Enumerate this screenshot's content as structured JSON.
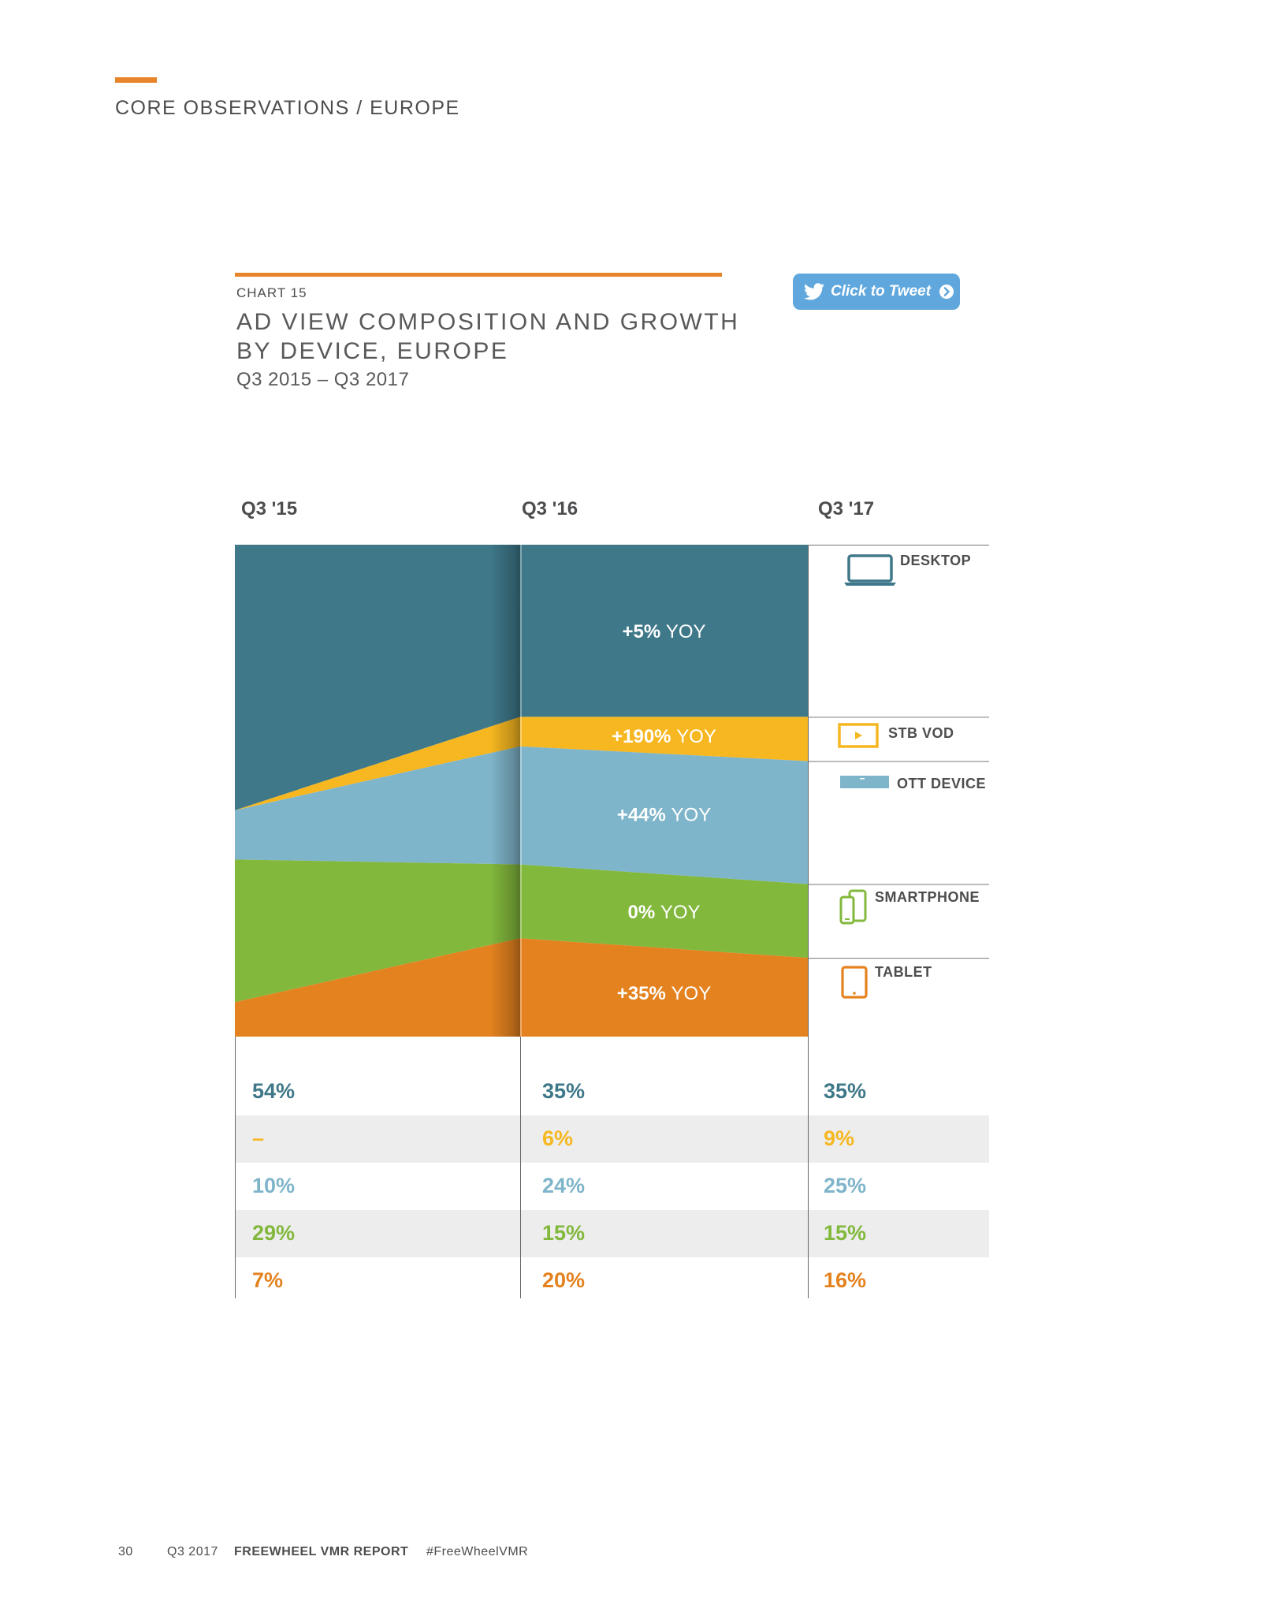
{
  "header": {
    "section_title": "CORE OBSERVATIONS / EUROPE"
  },
  "chart_header": {
    "chart_number": "CHART 15",
    "title_line1": "AD VIEW COMPOSITION AND GROWTH",
    "title_line2": "BY DEVICE, EUROPE",
    "subtitle": "Q3 2015 – Q3 2017"
  },
  "tweet_button": {
    "label": "Click to Tweet"
  },
  "colors": {
    "accent": "#e8852a",
    "desktop": "#3e7889",
    "stb_vod": "#f6b720",
    "ott_device": "#7fb5ca",
    "smartphone": "#82b83c",
    "tablet": "#e4821f",
    "row_shade": "#ededed"
  },
  "chart_data": {
    "type": "area",
    "stacked": true,
    "normalized_percent": true,
    "categories": [
      "Q3 '15",
      "Q3 '16",
      "Q3 '17"
    ],
    "series": [
      {
        "name": "DESKTOP",
        "key": "desktop",
        "values": [
          54,
          35,
          35
        ],
        "labels": [
          "54%",
          "35%",
          "35%"
        ],
        "yoy": "+5% YOY",
        "icon": "laptop-icon"
      },
      {
        "name": "STB VOD",
        "key": "stb_vod",
        "values": [
          0,
          6,
          9
        ],
        "labels": [
          "–",
          "6%",
          "9%"
        ],
        "yoy": "+190% YOY",
        "icon": "tv-play-icon"
      },
      {
        "name": "OTT DEVICE",
        "key": "ott_device",
        "values": [
          10,
          24,
          25
        ],
        "labels": [
          "10%",
          "24%",
          "25%"
        ],
        "yoy": "+44% YOY",
        "icon": "ott-box-icon"
      },
      {
        "name": "SMARTPHONE",
        "key": "smartphone",
        "values": [
          29,
          15,
          15
        ],
        "labels": [
          "29%",
          "15%",
          "15%"
        ],
        "yoy": "0% YOY",
        "icon": "smartphone-icon"
      },
      {
        "name": "TABLET",
        "key": "tablet",
        "values": [
          7,
          20,
          16
        ],
        "labels": [
          "7%",
          "20%",
          "16%"
        ],
        "yoy": "+35% YOY",
        "icon": "tablet-icon"
      }
    ],
    "ylim": [
      0,
      100
    ]
  },
  "footer": {
    "page_number": "30",
    "period": "Q3 2017",
    "report_name": "FREEWHEEL VMR REPORT",
    "hashtag": "#FreeWheelVMR"
  }
}
